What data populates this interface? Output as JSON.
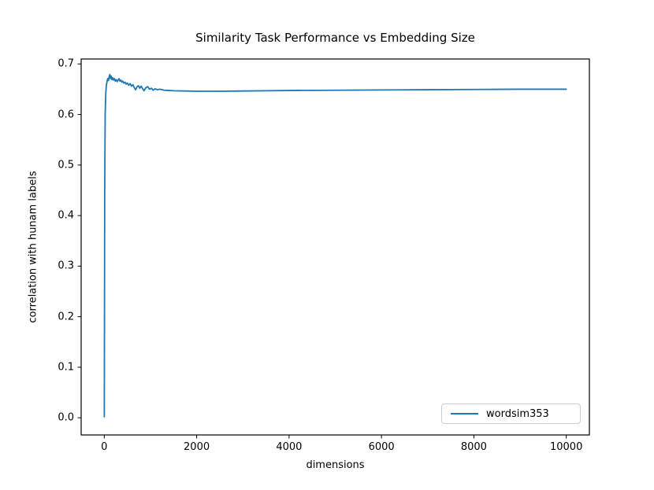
{
  "chart_data": {
    "type": "line",
    "title": "Similarity Task Performance vs Embedding Size",
    "xlabel": "dimensions",
    "ylabel": "correlation with hunam labels",
    "xlim": [
      -500,
      10500
    ],
    "ylim": [
      -0.034,
      0.7098
    ],
    "xticks": [
      0,
      2000,
      4000,
      6000,
      8000,
      10000
    ],
    "yticks": [
      0.0,
      0.1,
      0.2,
      0.3,
      0.4,
      0.5,
      0.6,
      0.7
    ],
    "grid": false,
    "legend": {
      "position": "lower right",
      "entries": [
        "wordsim353"
      ]
    },
    "series": [
      {
        "name": "wordsim353",
        "color": "#1f77b4",
        "x": [
          1,
          10,
          20,
          30,
          45,
          60,
          75,
          90,
          105,
          120,
          135,
          150,
          165,
          180,
          200,
          220,
          240,
          260,
          280,
          300,
          320,
          340,
          360,
          380,
          400,
          425,
          450,
          475,
          500,
          530,
          560,
          590,
          620,
          650,
          680,
          710,
          740,
          770,
          800,
          830,
          860,
          900,
          940,
          980,
          1020,
          1060,
          1100,
          1150,
          1200,
          1300,
          1400,
          1500,
          1750,
          2000,
          2500,
          3000,
          3500,
          4000,
          5000,
          6000,
          7000,
          8000,
          9000,
          10000
        ],
        "y": [
          0.002,
          0.45,
          0.6,
          0.638,
          0.658,
          0.665,
          0.671,
          0.667,
          0.674,
          0.679,
          0.671,
          0.676,
          0.669,
          0.673,
          0.668,
          0.671,
          0.666,
          0.669,
          0.665,
          0.668,
          0.671,
          0.666,
          0.668,
          0.664,
          0.666,
          0.662,
          0.664,
          0.66,
          0.662,
          0.658,
          0.661,
          0.656,
          0.659,
          0.653,
          0.649,
          0.655,
          0.657,
          0.652,
          0.656,
          0.651,
          0.647,
          0.653,
          0.655,
          0.65,
          0.652,
          0.648,
          0.651,
          0.649,
          0.65,
          0.648,
          0.6475,
          0.647,
          0.6465,
          0.646,
          0.646,
          0.6465,
          0.647,
          0.6475,
          0.648,
          0.6485,
          0.649,
          0.6495,
          0.65,
          0.65
        ]
      }
    ]
  },
  "style": {
    "axis_color": "#000000",
    "background": "#ffffff",
    "legend_border": "#cccccc"
  }
}
